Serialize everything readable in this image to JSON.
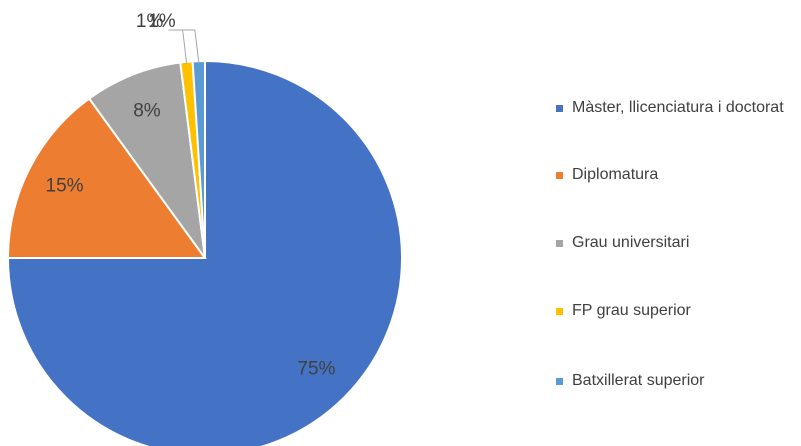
{
  "chart_data": {
    "type": "pie",
    "categories": [
      "Màster, llicenciatura i doctorat",
      "Diplomatura",
      "Grau universitari",
      "FP grau superior",
      "Batxillerat superior"
    ],
    "values": [
      75,
      15,
      8,
      1,
      1
    ],
    "value_labels": [
      "75%",
      "15%",
      "8%",
      "1%",
      "1%"
    ],
    "colors": [
      "#4472c4",
      "#ed7d31",
      "#a5a5a5",
      "#ffc000",
      "#5b9bd5"
    ],
    "legend": "right"
  }
}
